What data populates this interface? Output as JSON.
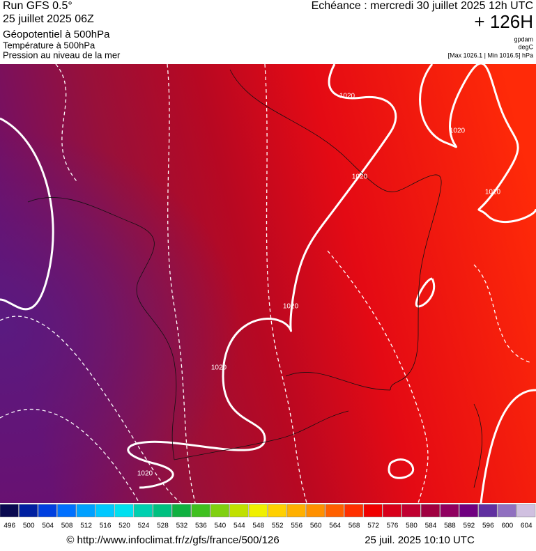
{
  "header": {
    "run": "Run GFS 0.5°",
    "run_date": "25 juillet 2025 06Z",
    "field1": "Géopotentiel à 500hPa",
    "field2": "Température à 500hPa",
    "field3": "Pression au niveau de la mer",
    "valid": "Echéance : mercredi 30 juillet 2025 12h UTC",
    "lead": "+ 126H",
    "unit1": "gpdam",
    "unit2": "degC",
    "pressure_range": "[Max 1026.1 | Min 1016.5] hPa"
  },
  "isobar_labels": [
    "1020",
    "1020",
    "1020",
    "1020",
    "1020",
    "1020",
    "1020"
  ],
  "colorbar": {
    "labels": [
      "496",
      "500",
      "504",
      "508",
      "512",
      "516",
      "520",
      "524",
      "528",
      "532",
      "536",
      "540",
      "544",
      "548",
      "552",
      "556",
      "560",
      "564",
      "568",
      "572",
      "576",
      "580",
      "584",
      "588",
      "592",
      "596",
      "600",
      "604"
    ],
    "colors": [
      "#0a0a50",
      "#0020a0",
      "#0040e0",
      "#0070ff",
      "#00a0ff",
      "#00c8ff",
      "#00e0f0",
      "#00d0b0",
      "#00c080",
      "#10b040",
      "#40c020",
      "#80d010",
      "#c0e000",
      "#f0f000",
      "#ffd000",
      "#ffb000",
      "#ff9000",
      "#ff6000",
      "#ff3000",
      "#f00000",
      "#d8001a",
      "#c00030",
      "#a00040",
      "#900060",
      "#700080",
      "#6030a0",
      "#9070c0",
      "#d0c0e0"
    ]
  },
  "footer": {
    "url": "© http://www.infoclimat.fr/z/gfs/france/500/126",
    "timestamp": "25 juil. 2025 10:10 UTC"
  }
}
